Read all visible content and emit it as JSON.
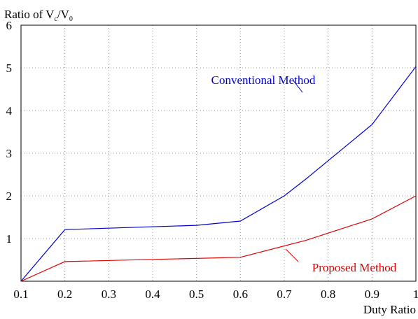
{
  "chart_data": {
    "type": "line",
    "xlabel": "Duty Ratio",
    "ylabel_main": "Ratio of V",
    "ylabel_sub1": "c",
    "ylabel_mid": "/V",
    "ylabel_sub2": "0",
    "xlim": [
      0.1,
      1.0
    ],
    "ylim": [
      0,
      6
    ],
    "x_ticks": [
      "0.1",
      "0.2",
      "0.3",
      "0.4",
      "0.5",
      "0.6",
      "0.7",
      "0.8",
      "0.9",
      "1"
    ],
    "x_tick_values": [
      0.1,
      0.2,
      0.3,
      0.4,
      0.5,
      0.6,
      0.7,
      0.8,
      0.9,
      1.0
    ],
    "y_ticks": [
      "1",
      "2",
      "3",
      "4",
      "5",
      "6"
    ],
    "y_tick_values": [
      1,
      2,
      3,
      4,
      5,
      6
    ],
    "grid": true,
    "series": [
      {
        "name": "Conventional Method",
        "color": "#0000cc",
        "x": [
          0.1,
          0.2,
          0.5,
          0.6,
          0.7,
          0.75,
          0.9,
          1.0
        ],
        "y": [
          0.0,
          1.21,
          1.31,
          1.41,
          2.0,
          2.4,
          3.67,
          5.03
        ]
      },
      {
        "name": "Proposed Method",
        "color": "#e00000",
        "x": [
          0.1,
          0.2,
          0.6,
          0.75,
          0.9,
          1.0
        ],
        "y": [
          0.0,
          0.46,
          0.56,
          0.96,
          1.46,
          2.0
        ]
      }
    ]
  }
}
